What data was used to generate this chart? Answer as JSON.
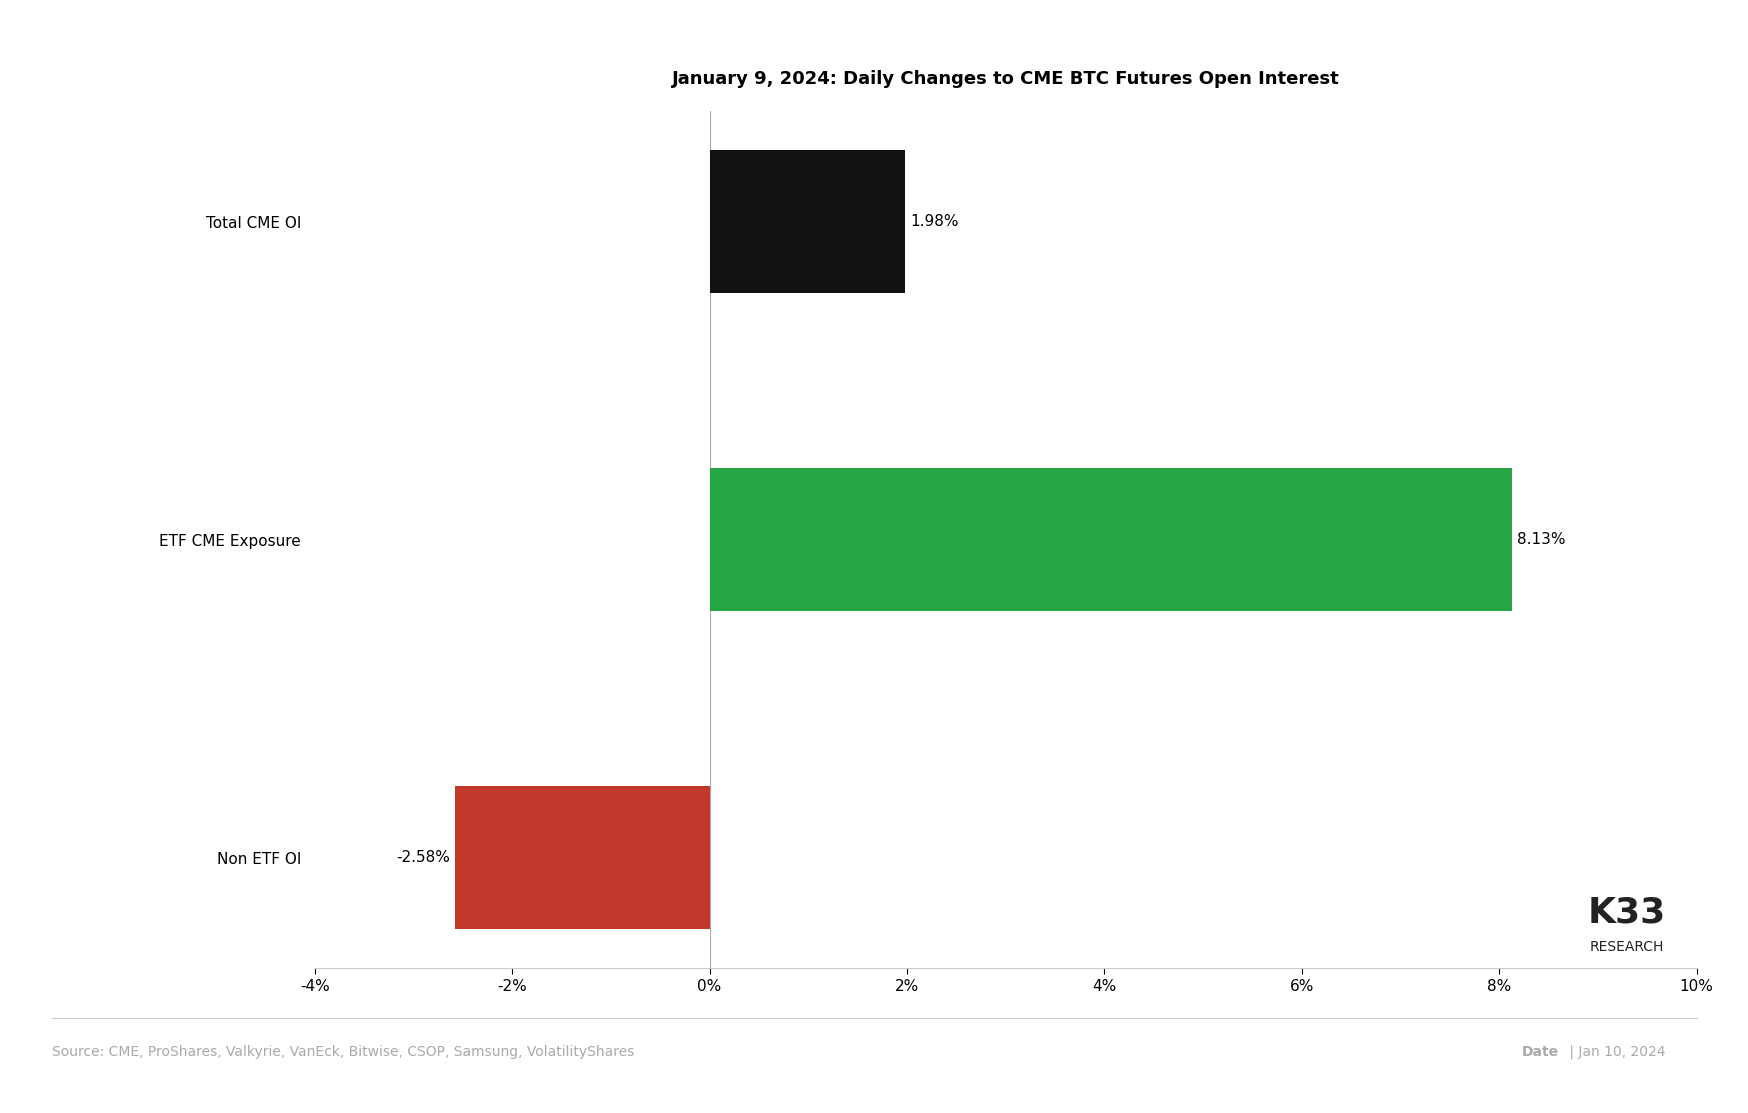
{
  "title": "January 9, 2024: Daily Changes to CME BTC Futures Open Interest",
  "categories": [
    "Non ETF OI",
    "ETF CME Exposure",
    "Total CME OI"
  ],
  "values": [
    -2.58,
    8.13,
    1.98
  ],
  "colors": [
    "#c0392b",
    "#27a744",
    "#111111"
  ],
  "labels": [
    "-2.58%",
    "8.13%",
    "1.98%"
  ],
  "xlim": [
    -4,
    10
  ],
  "xticks": [
    -4,
    -2,
    0,
    2,
    4,
    6,
    8,
    10
  ],
  "xtick_labels": [
    "-4%",
    "-2%",
    "0%",
    "2%",
    "4%",
    "6%",
    "8%",
    "10%"
  ],
  "source_text": "Source: CME, ProShares, Valkyrie, VanEck, Bitwise, CSOP, Samsung, VolatilityShares",
  "date_label": "Date",
  "date_value": "Jan 10, 2024",
  "logo_text_top": "K33",
  "logo_text_bottom": "RESEARCH",
  "background_color": "#ffffff",
  "title_fontsize": 13,
  "label_fontsize": 11,
  "tick_fontsize": 11,
  "footer_fontsize": 10,
  "bar_height": 0.45
}
